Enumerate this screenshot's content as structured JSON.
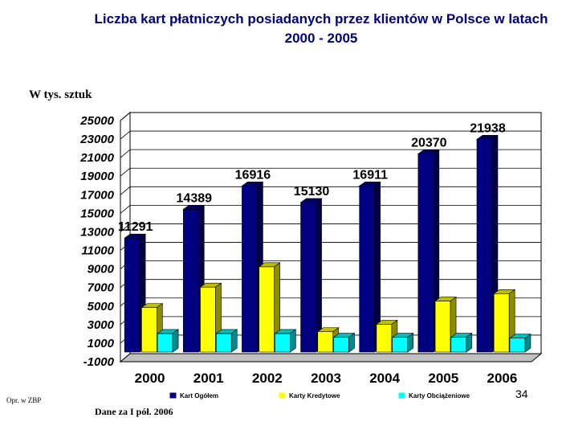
{
  "title": "Liczba kart płatniczych posiadanych przez klientów w Polsce w latach 2000 - 2005",
  "unit_label": "W tys. sztuk",
  "slide_number": "34",
  "source_note": "Opr. w ZBP",
  "footnote": "Dane za I pół. 2006",
  "chart_data": {
    "type": "bar",
    "categories": [
      "2000",
      "2001",
      "2002",
      "2003",
      "2004",
      "2005",
      "2006"
    ],
    "series": [
      {
        "name": "Kart Ogółem",
        "color": "#000080",
        "values": [
          11291,
          14389,
          16916,
          15130,
          16911,
          20370,
          21938
        ]
      },
      {
        "name": "Karty Kredytowe",
        "color": "#FFFF00",
        "values": [
          3800,
          6000,
          8200,
          1200,
          2000,
          4500,
          5300
        ]
      },
      {
        "name": "Karty Obciążeniowe",
        "color": "#00FFFF",
        "values": [
          1000,
          1000,
          1000,
          600,
          600,
          600,
          500
        ]
      }
    ],
    "data_labels": [
      "11291",
      "14389",
      "16916",
      "15130",
      "16911",
      "20370",
      "21938"
    ],
    "ylim": [
      -1000,
      25000
    ],
    "yticks": [
      "25000",
      "23000",
      "21000",
      "19000",
      "17000",
      "15000",
      "13000",
      "11000",
      "9000",
      "7000",
      "5000",
      "3000",
      "1000",
      "-1000"
    ],
    "grid": true,
    "legend_position": "bottom"
  }
}
